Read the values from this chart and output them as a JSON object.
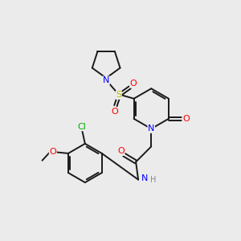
{
  "bg_color": "#ebebeb",
  "bond_color": "#1a1a1a",
  "bond_width": 1.4,
  "atom_colors": {
    "N": "#0000ff",
    "O": "#ff0000",
    "S": "#bbbb00",
    "Cl": "#00aa00",
    "C": "#1a1a1a",
    "H": "#888888"
  },
  "font_size": 8
}
